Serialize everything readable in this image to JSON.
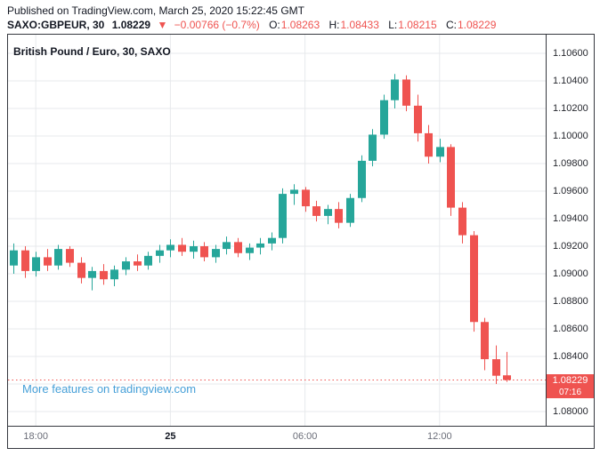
{
  "header": {
    "published": "Published on TradingView.com, March 25, 2020 15:22:45 GMT",
    "symbol": "SAXO:GBPEUR, 30",
    "last_price": "1.08229",
    "direction": "▼",
    "change": "−0.00766 (−0.7%)",
    "ohlc": [
      {
        "label": "O:",
        "value": "1.08263"
      },
      {
        "label": "H:",
        "value": "1.08433"
      },
      {
        "label": "L:",
        "value": "1.08215"
      },
      {
        "label": "C:",
        "value": "1.08229"
      }
    ]
  },
  "legend": "British Pound / Euro, 30, SAXO",
  "watermark": "More features on tradingview.com",
  "price_axis": {
    "labels": [
      "1.10600",
      "1.10400",
      "1.10200",
      "1.10000",
      "1.09800",
      "1.09600",
      "1.09400",
      "1.09200",
      "1.09000",
      "1.08800",
      "1.08600",
      "1.08400",
      "1.08200",
      "1.08000"
    ]
  },
  "time_axis": {
    "labels": [
      {
        "text": "18:00",
        "bar_index": 2,
        "bold": false
      },
      {
        "text": "25",
        "bar_index": 14,
        "bold": true
      },
      {
        "text": "06:00",
        "bar_index": 26,
        "bold": false
      },
      {
        "text": "12:00",
        "bar_index": 38,
        "bold": false
      }
    ]
  },
  "price_line": {
    "value": "1.08229",
    "countdown": "07:16"
  },
  "colors": {
    "up": "#26a69a",
    "down": "#ef5350",
    "grid": "#e7e9ec",
    "text": "#131722",
    "axis_text": "#6a6d78",
    "watermark": "#47a0d8",
    "badge": "#ef5350"
  },
  "chart_data": {
    "type": "candlestick",
    "title": "British Pound / Euro, 30, SAXO",
    "symbol": "GBPEUR",
    "interval_minutes": 30,
    "y_range": [
      1.08,
      1.106
    ],
    "y_tick_step": 0.002,
    "grid": true,
    "last_price": 1.08229,
    "candles": [
      {
        "t": "17:00",
        "o": 1.0906,
        "h": 1.0922,
        "l": 1.09,
        "c": 1.0917
      },
      {
        "t": "17:30",
        "o": 1.0917,
        "h": 1.092,
        "l": 1.0897,
        "c": 1.0902
      },
      {
        "t": "18:00",
        "o": 1.0902,
        "h": 1.0916,
        "l": 1.0898,
        "c": 1.0912
      },
      {
        "t": "18:30",
        "o": 1.0912,
        "h": 1.0918,
        "l": 1.0902,
        "c": 1.0906
      },
      {
        "t": "19:00",
        "o": 1.0906,
        "h": 1.0921,
        "l": 1.0903,
        "c": 1.0918
      },
      {
        "t": "19:30",
        "o": 1.0918,
        "h": 1.092,
        "l": 1.0905,
        "c": 1.0908
      },
      {
        "t": "20:00",
        "o": 1.0908,
        "h": 1.0912,
        "l": 1.0893,
        "c": 1.0897
      },
      {
        "t": "20:30",
        "o": 1.0897,
        "h": 1.0905,
        "l": 1.0888,
        "c": 1.0902
      },
      {
        "t": "21:00",
        "o": 1.0902,
        "h": 1.0907,
        "l": 1.0892,
        "c": 1.0896
      },
      {
        "t": "21:30",
        "o": 1.0896,
        "h": 1.0906,
        "l": 1.0891,
        "c": 1.0903
      },
      {
        "t": "22:00",
        "o": 1.0903,
        "h": 1.0912,
        "l": 1.0899,
        "c": 1.0909
      },
      {
        "t": "22:30",
        "o": 1.0909,
        "h": 1.0914,
        "l": 1.0902,
        "c": 1.0906
      },
      {
        "t": "23:00",
        "o": 1.0906,
        "h": 1.0916,
        "l": 1.0903,
        "c": 1.0913
      },
      {
        "t": "23:30",
        "o": 1.0913,
        "h": 1.0921,
        "l": 1.0908,
        "c": 1.0917
      },
      {
        "t": "00:00",
        "o": 1.0917,
        "h": 1.0925,
        "l": 1.0912,
        "c": 1.0921
      },
      {
        "t": "00:30",
        "o": 1.0921,
        "h": 1.0926,
        "l": 1.0913,
        "c": 1.0916
      },
      {
        "t": "01:00",
        "o": 1.0916,
        "h": 1.0924,
        "l": 1.0911,
        "c": 1.092
      },
      {
        "t": "01:30",
        "o": 1.092,
        "h": 1.0923,
        "l": 1.0909,
        "c": 1.0912
      },
      {
        "t": "02:00",
        "o": 1.0912,
        "h": 1.0921,
        "l": 1.0908,
        "c": 1.0918
      },
      {
        "t": "02:30",
        "o": 1.0918,
        "h": 1.0927,
        "l": 1.0914,
        "c": 1.0923
      },
      {
        "t": "03:00",
        "o": 1.0923,
        "h": 1.0926,
        "l": 1.0912,
        "c": 1.0915
      },
      {
        "t": "03:30",
        "o": 1.0915,
        "h": 1.0922,
        "l": 1.091,
        "c": 1.0919
      },
      {
        "t": "04:00",
        "o": 1.0919,
        "h": 1.0926,
        "l": 1.0914,
        "c": 1.0922
      },
      {
        "t": "04:30",
        "o": 1.0922,
        "h": 1.093,
        "l": 1.0917,
        "c": 1.0926
      },
      {
        "t": "05:00",
        "o": 1.0926,
        "h": 1.0962,
        "l": 1.0922,
        "c": 1.0958
      },
      {
        "t": "05:30",
        "o": 1.0958,
        "h": 1.0965,
        "l": 1.095,
        "c": 1.0961
      },
      {
        "t": "06:00",
        "o": 1.0961,
        "h": 1.0963,
        "l": 1.0945,
        "c": 1.0949
      },
      {
        "t": "06:30",
        "o": 1.0949,
        "h": 1.0953,
        "l": 1.0938,
        "c": 1.0942
      },
      {
        "t": "07:00",
        "o": 1.0942,
        "h": 1.095,
        "l": 1.0936,
        "c": 1.0947
      },
      {
        "t": "07:30",
        "o": 1.0947,
        "h": 1.0952,
        "l": 1.0933,
        "c": 1.0937
      },
      {
        "t": "08:00",
        "o": 1.0937,
        "h": 1.0958,
        "l": 1.0934,
        "c": 1.0955
      },
      {
        "t": "08:30",
        "o": 1.0955,
        "h": 1.0986,
        "l": 1.0952,
        "c": 1.0982
      },
      {
        "t": "09:00",
        "o": 1.0982,
        "h": 1.1005,
        "l": 1.0978,
        "c": 1.1001
      },
      {
        "t": "09:30",
        "o": 1.1001,
        "h": 1.103,
        "l": 1.0998,
        "c": 1.1026
      },
      {
        "t": "10:00",
        "o": 1.1026,
        "h": 1.1045,
        "l": 1.102,
        "c": 1.1041
      },
      {
        "t": "10:30",
        "o": 1.1041,
        "h": 1.1044,
        "l": 1.1018,
        "c": 1.1022
      },
      {
        "t": "11:00",
        "o": 1.1022,
        "h": 1.103,
        "l": 1.0996,
        "c": 1.1002
      },
      {
        "t": "11:30",
        "o": 1.1002,
        "h": 1.1008,
        "l": 1.098,
        "c": 1.0985
      },
      {
        "t": "12:00",
        "o": 1.0985,
        "h": 1.0998,
        "l": 1.0981,
        "c": 1.0992
      },
      {
        "t": "12:30",
        "o": 1.0992,
        "h": 1.0994,
        "l": 1.0942,
        "c": 1.0948
      },
      {
        "t": "13:00",
        "o": 1.0948,
        "h": 1.0952,
        "l": 1.0922,
        "c": 1.0928
      },
      {
        "t": "13:30",
        "o": 1.0928,
        "h": 1.0931,
        "l": 1.0858,
        "c": 1.0865
      },
      {
        "t": "14:00",
        "o": 1.0865,
        "h": 1.0868,
        "l": 1.083,
        "c": 1.0838
      },
      {
        "t": "14:30",
        "o": 1.0838,
        "h": 1.0848,
        "l": 1.082,
        "c": 1.0826
      },
      {
        "t": "15:00",
        "o": 1.08263,
        "h": 1.08433,
        "l": 1.08215,
        "c": 1.08229
      }
    ]
  }
}
